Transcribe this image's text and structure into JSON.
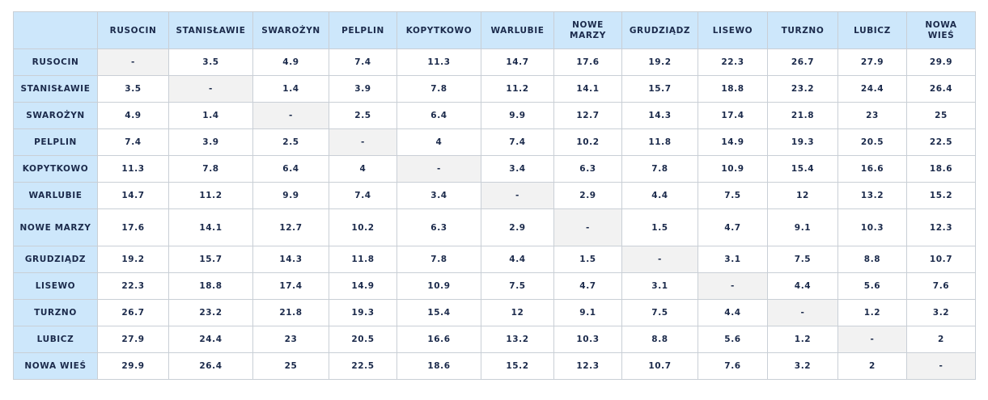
{
  "table": {
    "header": [
      "RUSOCIN",
      "STANISŁAWIE",
      "SWAROŻYN",
      "PELPLIN",
      "KOPYTKOWO",
      "WARLUBIE",
      "NOWE MARZY",
      "GRUDZIĄDZ",
      "LISEWO",
      "TURZNO",
      "LUBICZ",
      "NOWA WIEŚ"
    ],
    "rows": [
      {
        "label": "RUSOCIN",
        "cells": [
          "-",
          3.5,
          4.9,
          7.4,
          11.3,
          14.7,
          17.6,
          19.2,
          22.3,
          26.7,
          27.9,
          29.9
        ]
      },
      {
        "label": "STANISŁAWIE",
        "cells": [
          3.5,
          "-",
          1.4,
          3.9,
          7.8,
          11.2,
          14.1,
          15.7,
          18.8,
          23.2,
          24.4,
          26.4
        ]
      },
      {
        "label": "SWAROŻYN",
        "cells": [
          4.9,
          1.4,
          "-",
          2.5,
          6.4,
          9.9,
          12.7,
          14.3,
          17.4,
          21.8,
          23,
          25
        ]
      },
      {
        "label": "PELPLIN",
        "cells": [
          7.4,
          3.9,
          2.5,
          "-",
          4,
          7.4,
          10.2,
          11.8,
          14.9,
          19.3,
          20.5,
          22.5
        ]
      },
      {
        "label": "KOPYTKOWO",
        "cells": [
          11.3,
          7.8,
          6.4,
          4,
          "-",
          3.4,
          6.3,
          7.8,
          10.9,
          15.4,
          16.6,
          18.6
        ]
      },
      {
        "label": "WARLUBIE",
        "cells": [
          14.7,
          11.2,
          9.9,
          7.4,
          3.4,
          "-",
          2.9,
          4.4,
          7.5,
          12,
          13.2,
          15.2
        ]
      },
      {
        "label": "NOWE MARZY",
        "cells": [
          17.6,
          14.1,
          12.7,
          10.2,
          6.3,
          2.9,
          "-",
          1.5,
          4.7,
          9.1,
          10.3,
          12.3
        ]
      },
      {
        "label": "GRUDZIĄDZ",
        "cells": [
          19.2,
          15.7,
          14.3,
          11.8,
          7.8,
          4.4,
          1.5,
          "-",
          3.1,
          7.5,
          8.8,
          10.7
        ]
      },
      {
        "label": "LISEWO",
        "cells": [
          22.3,
          18.8,
          17.4,
          14.9,
          10.9,
          7.5,
          4.7,
          3.1,
          "-",
          4.4,
          5.6,
          7.6
        ]
      },
      {
        "label": "TURZNO",
        "cells": [
          26.7,
          23.2,
          21.8,
          19.3,
          15.4,
          12,
          9.1,
          7.5,
          4.4,
          "-",
          1.2,
          3.2
        ]
      },
      {
        "label": "LUBICZ",
        "cells": [
          27.9,
          24.4,
          23,
          20.5,
          16.6,
          13.2,
          10.3,
          8.8,
          5.6,
          1.2,
          "-",
          2
        ]
      },
      {
        "label": "NOWA WIEŚ",
        "cells": [
          29.9,
          26.4,
          25,
          22.5,
          18.6,
          15.2,
          12.3,
          10.7,
          7.6,
          3.2,
          2,
          "-"
        ]
      }
    ]
  }
}
